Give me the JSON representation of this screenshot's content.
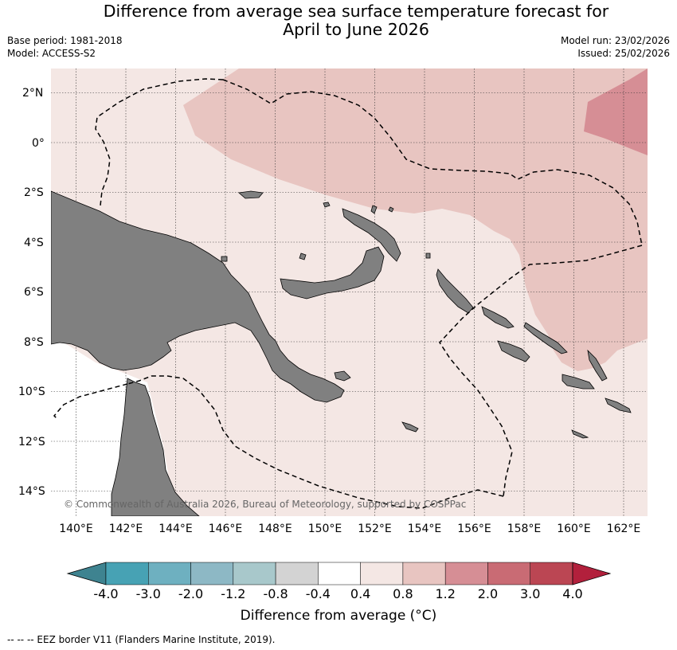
{
  "title_line1": "Difference from average sea surface temperature forecast for",
  "title_line2": "April to June 2026",
  "meta": {
    "base_period": "Base period: 1981-2018",
    "model": "Model: ACCESS-S2",
    "model_run": "Model run: 23/02/2026",
    "issued": "Issued: 25/02/2026"
  },
  "map": {
    "lat_labels": [
      "2°N",
      "0°",
      "2°S",
      "4°S",
      "6°S",
      "8°S",
      "10°S",
      "12°S",
      "14°S"
    ],
    "lon_labels": [
      "140°E",
      "142°E",
      "144°E",
      "146°E",
      "148°E",
      "150°E",
      "152°E",
      "154°E",
      "156°E",
      "158°E",
      "160°E",
      "162°E"
    ],
    "copyright": "© Commonwealth of Australia 2026, Bureau of Meteorology, supported by COSPPac",
    "colors": {
      "anomaly_0_4_0_8": "#f4e7e4",
      "anomaly_0_8_1_2": "#e8c5c1",
      "anomaly_1_2_2_0": "#d68e95",
      "land": "#808080",
      "no_data": "#ffffff"
    }
  },
  "colorbar": {
    "title": "Difference from average (°C)",
    "tick_labels": [
      "-4.0",
      "-3.0",
      "-2.0",
      "-1.2",
      "-0.8",
      "-0.4",
      "0.4",
      "0.8",
      "1.2",
      "2.0",
      "3.0",
      "4.0"
    ],
    "colors": [
      "#3e8390",
      "#47a2b4",
      "#6eb0c0",
      "#8db8c5",
      "#a8c8cb",
      "#d3d3d3",
      "#ffffff",
      "#f4e7e4",
      "#e8c5c1",
      "#d68e95",
      "#c96b74",
      "#bb4653",
      "#b2203c"
    ]
  },
  "footnote": "-- -- -- EEZ border V11 (Flanders Marine Institute, 2019)."
}
